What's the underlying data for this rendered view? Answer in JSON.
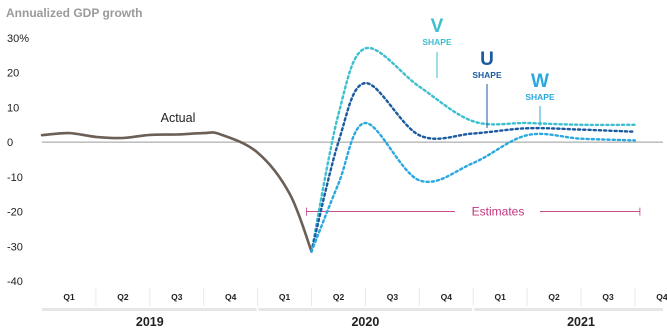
{
  "chart_data": {
    "type": "line",
    "title": "Annualized GDP growth",
    "ylim": [
      -40,
      30
    ],
    "yticks": [
      "30%",
      "20",
      "10",
      "0",
      "-10",
      "-20",
      "-30",
      "-40"
    ],
    "yticks_values": [
      30,
      20,
      10,
      0,
      -10,
      -20,
      -30,
      -40
    ],
    "quarters": [
      "Q1",
      "Q2",
      "Q3",
      "Q4",
      "Q1",
      "Q2",
      "Q3",
      "Q4",
      "Q1",
      "Q2",
      "Q3",
      "Q4"
    ],
    "years": [
      "2019",
      "2020",
      "2021"
    ],
    "series": [
      {
        "name": "Actual",
        "style": "solid",
        "color": "#6b5f57",
        "points": [
          [
            0,
            2
          ],
          [
            0.5,
            2.6
          ],
          [
            1,
            1.5
          ],
          [
            1.5,
            1.2
          ],
          [
            2,
            2.1
          ],
          [
            2.5,
            2.2
          ],
          [
            3,
            2.6
          ],
          [
            3.3,
            2.3
          ],
          [
            4,
            -3
          ],
          [
            4.6,
            -15
          ],
          [
            5,
            -31.5
          ]
        ]
      },
      {
        "name": "V",
        "subtitle": "SHAPE",
        "style": "dotted",
        "color": "#3cbfcf",
        "points": [
          [
            5,
            -31.5
          ],
          [
            5.5,
            8
          ],
          [
            6,
            27
          ],
          [
            7,
            16
          ],
          [
            8,
            6
          ],
          [
            9,
            5.5
          ],
          [
            10,
            5
          ],
          [
            11,
            5
          ]
        ]
      },
      {
        "name": "U",
        "subtitle": "SHAPE",
        "style": "dotted",
        "color": "#1b5aa0",
        "points": [
          [
            5,
            -31.5
          ],
          [
            5.5,
            0
          ],
          [
            6,
            17
          ],
          [
            7,
            2
          ],
          [
            8,
            2.5
          ],
          [
            9,
            4
          ],
          [
            10,
            3.6
          ],
          [
            11,
            3
          ]
        ]
      },
      {
        "name": "W",
        "subtitle": "SHAPE",
        "style": "dotted",
        "color": "#2aa8e0",
        "points": [
          [
            5,
            -31.5
          ],
          [
            5.5,
            -12
          ],
          [
            6,
            5.5
          ],
          [
            7,
            -11
          ],
          [
            8,
            -6
          ],
          [
            9,
            2
          ],
          [
            10,
            1
          ],
          [
            11,
            0.5
          ]
        ]
      }
    ],
    "estimates_label": "Estimates",
    "estimates_range": [
      5,
      11
    ],
    "estimates_value": -20,
    "estimates_color": "#c2347e",
    "actual_label": "Actual"
  }
}
